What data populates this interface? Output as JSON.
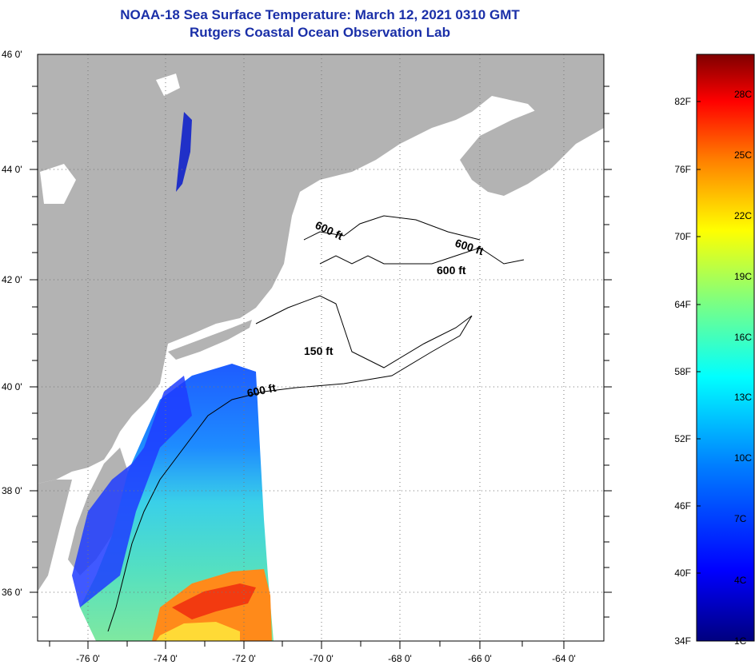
{
  "title": {
    "line1": "NOAA-18 Sea Surface Temperature:  March 12, 2021 0310 GMT",
    "line2": "Rutgers Coastal Ocean Observation Lab"
  },
  "map": {
    "lat_labels": [
      "46 0'",
      "44 0'",
      "42 0'",
      "40 0'",
      "38 0'",
      "36 0'"
    ],
    "lon_labels": [
      "-76 0'",
      "-74 0'",
      "-72 0'",
      "-70 0'",
      "-68 0'",
      "-66 0'",
      "-64 0'"
    ],
    "contour_labels": [
      "600 ft",
      "600 ft",
      "600 ft",
      "150 ft",
      "600 ft"
    ],
    "colors": {
      "land": "#b3b3b3",
      "no_data": "#ffffff",
      "contour": "#000000"
    }
  },
  "colorbar": {
    "fahrenheit_labels": [
      "82F",
      "76F",
      "70F",
      "64F",
      "58F",
      "52F",
      "46F",
      "40F",
      "34F"
    ],
    "celsius_labels": [
      "28C",
      "25C",
      "22C",
      "19C",
      "16C",
      "13C",
      "10C",
      "7C",
      "4C",
      "1C"
    ],
    "colors": [
      "#00007f",
      "#0000ff",
      "#007fff",
      "#00ffff",
      "#7fff7f",
      "#ffff00",
      "#ff7f00",
      "#ff0000",
      "#7f0000"
    ]
  }
}
